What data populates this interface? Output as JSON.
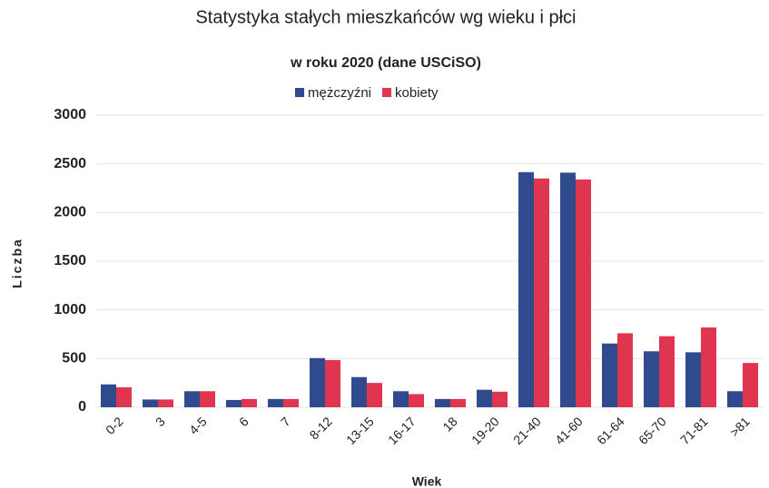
{
  "chart_data": {
    "type": "bar",
    "title": "Statystyka stałych mieszkańców wg wieku i płci",
    "subtitle": "w roku 2020 (dane USCiSO)",
    "xlabel": "Wiek",
    "ylabel": "Liczba",
    "categories": [
      "0-2",
      "3",
      "4-5",
      "6",
      "7",
      "8-12",
      "13-15",
      "16-17",
      "18",
      "19-20",
      "21-40",
      "41-60",
      "61-64",
      "65-70",
      "71-81",
      ">81"
    ],
    "series": [
      {
        "name": "mężczyźni",
        "color": "#2f4b8e",
        "values": [
          235,
          80,
          165,
          75,
          85,
          505,
          310,
          165,
          85,
          180,
          2415,
          2410,
          655,
          575,
          565,
          165
        ]
      },
      {
        "name": "kobiety",
        "color": "#e0354f",
        "values": [
          205,
          80,
          165,
          85,
          85,
          485,
          250,
          135,
          85,
          160,
          2350,
          2340,
          760,
          730,
          820,
          455
        ]
      }
    ],
    "ylim": [
      0,
      3000
    ],
    "yticks": [
      0,
      500,
      1000,
      1500,
      2000,
      2500,
      3000
    ],
    "grid": true,
    "legend": "top"
  }
}
